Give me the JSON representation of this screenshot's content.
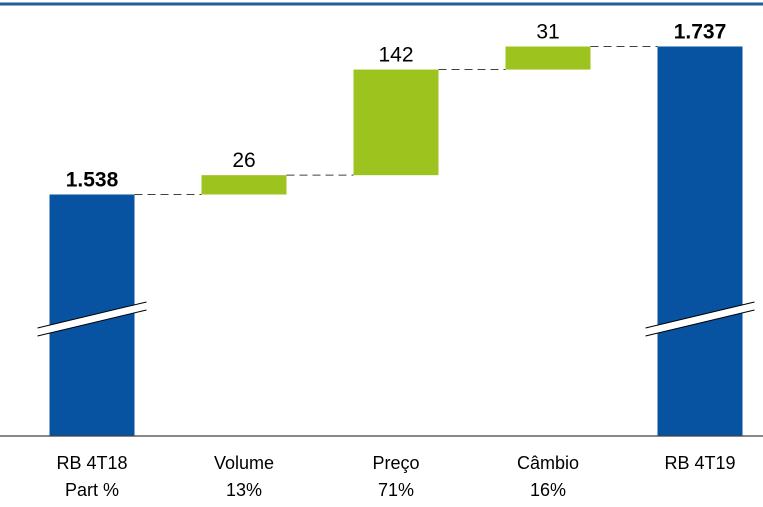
{
  "chart_data": {
    "type": "bar",
    "subtype": "waterfall",
    "title": "",
    "xlabel": "",
    "ylabel": "",
    "axis_break": true,
    "categories": [
      "RB 4T18",
      "Volume",
      "Preço",
      "Câmbio",
      "RB 4T19"
    ],
    "sublabels": [
      "Part %",
      "13%",
      "71%",
      "16%",
      ""
    ],
    "steps": [
      {
        "kind": "total",
        "value": 1538,
        "label": "1.538"
      },
      {
        "kind": "delta",
        "value": 26,
        "label": "26"
      },
      {
        "kind": "delta",
        "value": 142,
        "label": "142"
      },
      {
        "kind": "delta",
        "value": 31,
        "label": "31"
      },
      {
        "kind": "total",
        "value": 1737,
        "label": "1.737"
      }
    ],
    "colors": {
      "total": "#0753A1",
      "delta": "#9DC31F",
      "top_rule": "#1F5D9E",
      "connector": "#404040"
    }
  }
}
